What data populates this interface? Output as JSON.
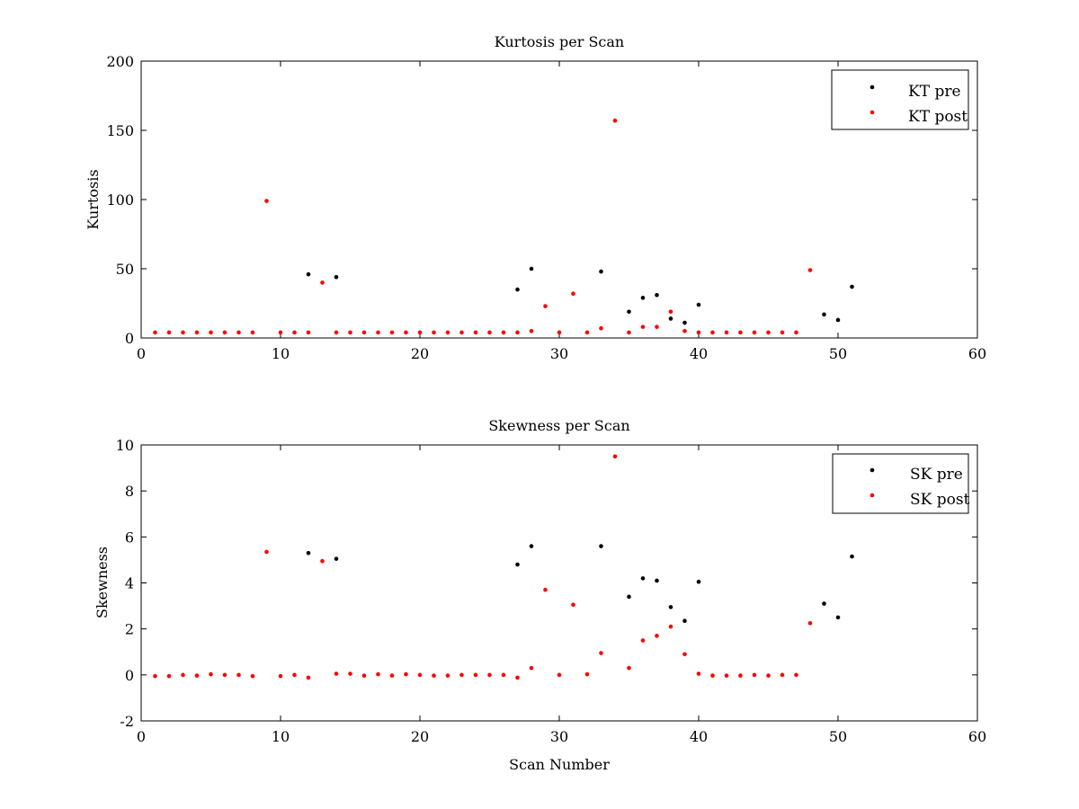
{
  "figure": {
    "xlabel": "Scan Number"
  },
  "chart_data": [
    {
      "type": "scatter",
      "title": "Kurtosis per Scan",
      "xlabel": "",
      "ylabel": "Kurtosis",
      "xlim": [
        0,
        60
      ],
      "ylim": [
        0,
        200
      ],
      "xticks": [
        "0",
        "10",
        "20",
        "30",
        "40",
        "50",
        "60"
      ],
      "yticks": [
        "0",
        "50",
        "100",
        "150",
        "200"
      ],
      "grid": false,
      "legend_placement": "top-right",
      "series": [
        {
          "name": "KT pre",
          "color": "#000000",
          "points": [
            [
              12,
              46
            ],
            [
              14,
              44
            ],
            [
              27,
              35
            ],
            [
              28,
              50
            ],
            [
              33,
              48
            ],
            [
              35,
              19
            ],
            [
              36,
              29
            ],
            [
              37,
              31
            ],
            [
              38,
              14
            ],
            [
              39,
              11
            ],
            [
              40,
              24
            ],
            [
              49,
              17
            ],
            [
              50,
              13
            ],
            [
              51,
              37
            ]
          ]
        },
        {
          "name": "KT post",
          "color": "#ff0000",
          "points": [
            [
              1,
              4
            ],
            [
              2,
              4
            ],
            [
              3,
              4
            ],
            [
              4,
              4
            ],
            [
              5,
              4
            ],
            [
              6,
              4
            ],
            [
              7,
              4
            ],
            [
              8,
              4
            ],
            [
              9,
              99
            ],
            [
              10,
              4
            ],
            [
              11,
              4
            ],
            [
              12,
              4
            ],
            [
              13,
              40
            ],
            [
              14,
              4
            ],
            [
              15,
              4
            ],
            [
              16,
              4
            ],
            [
              17,
              4
            ],
            [
              18,
              4
            ],
            [
              19,
              4
            ],
            [
              20,
              4
            ],
            [
              21,
              4
            ],
            [
              22,
              4
            ],
            [
              23,
              4
            ],
            [
              24,
              4
            ],
            [
              25,
              4
            ],
            [
              26,
              4
            ],
            [
              27,
              4
            ],
            [
              28,
              5
            ],
            [
              29,
              23
            ],
            [
              30,
              4
            ],
            [
              31,
              32
            ],
            [
              32,
              4
            ],
            [
              33,
              7
            ],
            [
              34,
              157
            ],
            [
              35,
              4
            ],
            [
              36,
              8
            ],
            [
              37,
              8
            ],
            [
              38,
              19
            ],
            [
              39,
              5
            ],
            [
              40,
              4
            ],
            [
              41,
              4
            ],
            [
              42,
              4
            ],
            [
              43,
              4
            ],
            [
              44,
              4
            ],
            [
              45,
              4
            ],
            [
              46,
              4
            ],
            [
              47,
              4
            ],
            [
              48,
              49
            ]
          ]
        }
      ]
    },
    {
      "type": "scatter",
      "title": "Skewness per Scan",
      "xlabel": "Scan Number",
      "ylabel": "Skewness",
      "xlim": [
        0,
        60
      ],
      "ylim": [
        -2,
        10
      ],
      "xticks": [
        "0",
        "10",
        "20",
        "30",
        "40",
        "50",
        "60"
      ],
      "yticks": [
        "-2",
        "0",
        "2",
        "4",
        "6",
        "8",
        "10"
      ],
      "grid": false,
      "legend_placement": "top-right",
      "series": [
        {
          "name": "SK pre",
          "color": "#000000",
          "points": [
            [
              12,
              5.3
            ],
            [
              14,
              5.05
            ],
            [
              27,
              4.8
            ],
            [
              28,
              5.6
            ],
            [
              33,
              5.6
            ],
            [
              35,
              3.4
            ],
            [
              36,
              4.2
            ],
            [
              37,
              4.1
            ],
            [
              38,
              2.95
            ],
            [
              39,
              2.35
            ],
            [
              40,
              4.05
            ],
            [
              49,
              3.1
            ],
            [
              50,
              2.5
            ],
            [
              51,
              5.15
            ]
          ]
        },
        {
          "name": "SK post",
          "color": "#ff0000",
          "points": [
            [
              1,
              -0.05
            ],
            [
              2,
              -0.05
            ],
            [
              3,
              0.0
            ],
            [
              4,
              -0.03
            ],
            [
              5,
              0.03
            ],
            [
              6,
              0.0
            ],
            [
              7,
              0.0
            ],
            [
              8,
              -0.05
            ],
            [
              9,
              5.35
            ],
            [
              10,
              -0.05
            ],
            [
              11,
              0.0
            ],
            [
              12,
              -0.12
            ],
            [
              13,
              4.95
            ],
            [
              14,
              0.05
            ],
            [
              15,
              0.05
            ],
            [
              16,
              -0.03
            ],
            [
              17,
              0.03
            ],
            [
              18,
              -0.03
            ],
            [
              19,
              0.03
            ],
            [
              20,
              0.0
            ],
            [
              21,
              -0.03
            ],
            [
              22,
              -0.03
            ],
            [
              23,
              0.0
            ],
            [
              24,
              0.0
            ],
            [
              25,
              0.0
            ],
            [
              26,
              0.0
            ],
            [
              27,
              -0.12
            ],
            [
              28,
              0.3
            ],
            [
              29,
              3.7
            ],
            [
              30,
              0.0
            ],
            [
              31,
              3.05
            ],
            [
              32,
              0.03
            ],
            [
              33,
              0.95
            ],
            [
              34,
              9.5
            ],
            [
              35,
              0.3
            ],
            [
              36,
              1.5
            ],
            [
              37,
              1.7
            ],
            [
              38,
              2.1
            ],
            [
              39,
              0.9
            ],
            [
              40,
              0.05
            ],
            [
              41,
              -0.03
            ],
            [
              42,
              -0.03
            ],
            [
              43,
              -0.03
            ],
            [
              44,
              0.0
            ],
            [
              45,
              -0.03
            ],
            [
              46,
              0.0
            ],
            [
              47,
              0.0
            ],
            [
              48,
              2.25
            ]
          ]
        }
      ]
    }
  ]
}
